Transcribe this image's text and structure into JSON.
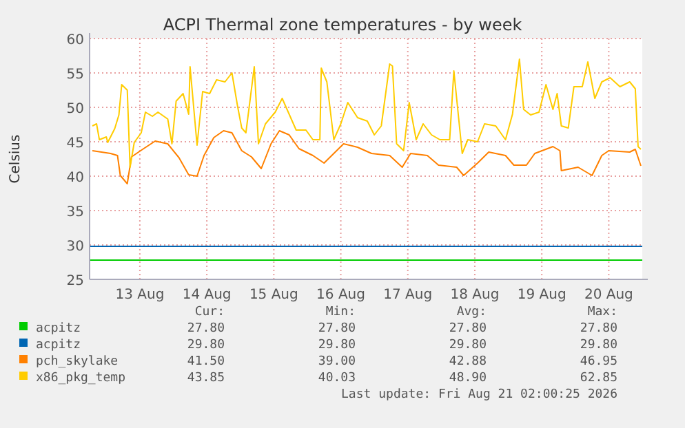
{
  "chart_data": {
    "type": "line",
    "title": "ACPI Thermal zone temperatures - by week",
    "ylabel": "Celsius",
    "xlim": [
      "2026-08-12T18:00",
      "2026-08-21T00:00"
    ],
    "ylim": [
      25,
      60
    ],
    "yticks": [
      25,
      30,
      35,
      40,
      45,
      50,
      55,
      60
    ],
    "xticks": [
      {
        "value": "2026-08-13T12:00",
        "label": "13 Aug"
      },
      {
        "value": "2026-08-14T12:00",
        "label": "14 Aug"
      },
      {
        "value": "2026-08-15T12:00",
        "label": "15 Aug"
      },
      {
        "value": "2026-08-16T12:00",
        "label": "16 Aug"
      },
      {
        "value": "2026-08-17T12:00",
        "label": "17 Aug"
      },
      {
        "value": "2026-08-18T12:00",
        "label": "18 Aug"
      },
      {
        "value": "2026-08-19T12:00",
        "label": "19 Aug"
      },
      {
        "value": "2026-08-20T12:00",
        "label": "20 Aug"
      }
    ],
    "grid": true,
    "legend": "bottom",
    "marker": "none",
    "line_style": "solid",
    "series": [
      {
        "name": "acpitz",
        "color": "#00cc00",
        "x": [
          "2026-08-12T18:00",
          "2026-08-21T00:00"
        ],
        "values": [
          27.8,
          27.8
        ]
      },
      {
        "name": "acpitz",
        "color": "#0066b3",
        "x": [
          "2026-08-12T18:00",
          "2026-08-21T00:00"
        ],
        "values": [
          29.8,
          29.8
        ]
      },
      {
        "name": "pch_skylake",
        "color": "#ff8000",
        "x": [
          "2026-08-12T19:00",
          "2026-08-13T01:30",
          "2026-08-13T04:00",
          "2026-08-13T05:00",
          "2026-08-13T07:30",
          "2026-08-13T09:00",
          "2026-08-13T13:00",
          "2026-08-13T17:30",
          "2026-08-13T22:00",
          "2026-08-14T02:00",
          "2026-08-14T05:30",
          "2026-08-14T08:30",
          "2026-08-14T11:00",
          "2026-08-14T14:30",
          "2026-08-14T18:00",
          "2026-08-14T21:00",
          "2026-08-15T00:30",
          "2026-08-15T04:00",
          "2026-08-15T07:30",
          "2026-08-15T11:00",
          "2026-08-15T14:00",
          "2026-08-15T17:30",
          "2026-08-15T21:00",
          "2026-08-16T02:00",
          "2026-08-16T06:00",
          "2026-08-16T09:30",
          "2026-08-16T13:00",
          "2026-08-16T18:00",
          "2026-08-16T23:00",
          "2026-08-17T05:30",
          "2026-08-17T10:00",
          "2026-08-17T13:00",
          "2026-08-17T19:00",
          "2026-08-17T23:00",
          "2026-08-18T05:30",
          "2026-08-18T08:00",
          "2026-08-18T13:00",
          "2026-08-18T17:00",
          "2026-08-18T23:00",
          "2026-08-19T02:00",
          "2026-08-19T06:30",
          "2026-08-19T09:30",
          "2026-08-19T16:00",
          "2026-08-19T18:30",
          "2026-08-19T19:00",
          "2026-08-20T01:00",
          "2026-08-20T06:00",
          "2026-08-20T09:30",
          "2026-08-20T12:00",
          "2026-08-20T19:30",
          "2026-08-20T21:30",
          "2026-08-20T23:30"
        ],
        "values": [
          43.7,
          43.3,
          43,
          40.1,
          38.9,
          42.8,
          43.9,
          45.1,
          44.7,
          42.7,
          40.2,
          40,
          43,
          45.6,
          46.6,
          46.3,
          43.7,
          42.8,
          41.1,
          44.7,
          46.6,
          46,
          44,
          43,
          41.9,
          43.3,
          44.7,
          44.2,
          43.3,
          43,
          41.3,
          43.3,
          43,
          41.6,
          41.3,
          40.1,
          41.9,
          43.5,
          43,
          41.6,
          41.6,
          43.3,
          44.3,
          43.7,
          40.8,
          41.3,
          40.1,
          43,
          43.7,
          43.5,
          43.9,
          41.5
        ]
      },
      {
        "name": "x86_pkg_temp",
        "color": "#ffcc00",
        "x": [
          "2026-08-12T19:00",
          "2026-08-12T20:30",
          "2026-08-12T21:30",
          "2026-08-13T00:00",
          "2026-08-13T00:30",
          "2026-08-13T03:00",
          "2026-08-13T04:30",
          "2026-08-13T05:30",
          "2026-08-13T07:30",
          "2026-08-13T08:30",
          "2026-08-13T10:00",
          "2026-08-13T12:30",
          "2026-08-13T14:00",
          "2026-08-13T16:30",
          "2026-08-13T18:30",
          "2026-08-13T22:00",
          "2026-08-13T23:30",
          "2026-08-14T01:00",
          "2026-08-14T03:30",
          "2026-08-14T05:30",
          "2026-08-14T06:00",
          "2026-08-14T08:30",
          "2026-08-14T10:30",
          "2026-08-14T13:00",
          "2026-08-14T15:30",
          "2026-08-14T18:30",
          "2026-08-14T21:00",
          "2026-08-14T23:00",
          "2026-08-15T00:30",
          "2026-08-15T02:00",
          "2026-08-15T05:00",
          "2026-08-15T06:30",
          "2026-08-15T09:00",
          "2026-08-15T12:30",
          "2026-08-15T15:00",
          "2026-08-15T17:30",
          "2026-08-15T20:00",
          "2026-08-15T23:30",
          "2026-08-16T02:00",
          "2026-08-16T04:30",
          "2026-08-16T05:00",
          "2026-08-16T07:00",
          "2026-08-16T09:30",
          "2026-08-16T12:00",
          "2026-08-16T14:30",
          "2026-08-16T18:00",
          "2026-08-16T21:30",
          "2026-08-17T00:00",
          "2026-08-17T02:30",
          "2026-08-17T05:30",
          "2026-08-17T06:30",
          "2026-08-17T08:00",
          "2026-08-17T10:30",
          "2026-08-17T12:30",
          "2026-08-17T15:00",
          "2026-08-17T17:30",
          "2026-08-17T20:30",
          "2026-08-17T23:30",
          "2026-08-18T03:00",
          "2026-08-18T04:30",
          "2026-08-18T07:30",
          "2026-08-18T09:30",
          "2026-08-18T13:00",
          "2026-08-18T15:30",
          "2026-08-18T19:30",
          "2026-08-18T23:00",
          "2026-08-19T01:30",
          "2026-08-19T04:00",
          "2026-08-19T05:30",
          "2026-08-19T08:00",
          "2026-08-19T11:00",
          "2026-08-19T13:30",
          "2026-08-19T16:00",
          "2026-08-19T17:30",
          "2026-08-19T19:00",
          "2026-08-19T21:30",
          "2026-08-19T23:30",
          "2026-08-20T02:30",
          "2026-08-20T04:30",
          "2026-08-20T07:00",
          "2026-08-20T09:30",
          "2026-08-20T12:30",
          "2026-08-20T16:00",
          "2026-08-20T19:30",
          "2026-08-20T21:30",
          "2026-08-20T22:30",
          "2026-08-20T23:30"
        ],
        "values": [
          47.3,
          47.6,
          45.3,
          45.7,
          44.9,
          46.9,
          48.9,
          53.3,
          52.5,
          41.3,
          44.9,
          46.3,
          49.3,
          48.7,
          49.3,
          48.3,
          44.7,
          50.9,
          52,
          49,
          55.9,
          44.5,
          52.3,
          52,
          54,
          53.7,
          55,
          50.2,
          47,
          46.3,
          55.9,
          44.7,
          47.6,
          49.3,
          51.3,
          49,
          46.7,
          46.7,
          45.3,
          45.3,
          55.7,
          53.7,
          45.3,
          47.6,
          50.7,
          48.5,
          48,
          46,
          47.3,
          56.3,
          56,
          44.7,
          43.7,
          50.7,
          45.3,
          47.6,
          46,
          45.3,
          45.3,
          55.3,
          43.3,
          45.3,
          45,
          47.6,
          47.3,
          45.3,
          49,
          57,
          49.7,
          48.9,
          49.3,
          53.3,
          49.7,
          52,
          47.3,
          47,
          53,
          53,
          56.6,
          51.3,
          53.7,
          54.3,
          53,
          53.7,
          52.7,
          44.3,
          43.9
        ]
      }
    ],
    "annotations": [
      "Cur:",
      "Min:",
      "Avg:",
      "Max:",
      "27.80",
      "27.80",
      "27.80",
      "27.80",
      "29.80",
      "29.80",
      "29.80",
      "29.80",
      "41.50",
      "39.00",
      "42.88",
      "46.95",
      "43.85",
      "40.03",
      "48.90",
      "62.85",
      "Last update: Fri Aug 21 02:00:25 2026"
    ]
  }
}
